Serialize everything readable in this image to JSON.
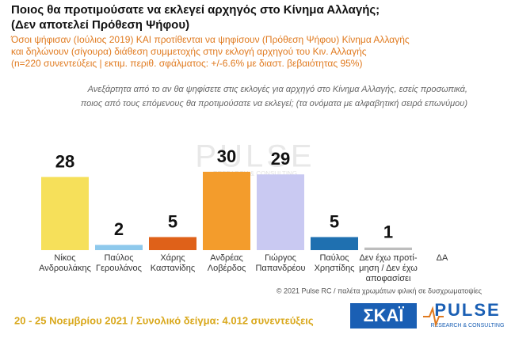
{
  "chart_data": {
    "type": "bar",
    "title": [
      "Ποιος θα προτιμούσατε να εκλεγεί αρχηγός στο Κίνημα Αλλαγής;",
      "(Δεν αποτελεί Πρόθεση Ψήφου)"
    ],
    "subtitle": [
      "Όσοι ψήφισαν (Ιούλιος 2019)  ΚΑΙ  προτίθενται να ψηφίσουν (Πρόθεση Ψήφου) Κίνημα Αλλαγής",
      "και δηλώνουν (σίγουρα) διάθεση συμμετοχής στην εκλογή αρχηγού του Κιν. Αλλαγής",
      "(n=220 συνεντεύξεις | εκτιμ. περιθ. σφάλματος: +/-6.6% με διαστ. βεβαιότητας 95%)"
    ],
    "question": [
      "Ανεξάρτητα από το αν θα ψηφίσετε στις εκλογές για αρχηγό στο Κίνημα Αλλαγής, εσείς προσωπικά,",
      "ποιος από τους επόμενους θα προτιμούσατε να εκλεγεί; (τα ονόματα με αλφαβητική σειρά επωνύμου)"
    ],
    "categories": [
      [
        "Νίκος",
        "Ανδρουλάκης"
      ],
      [
        "Παύλος",
        "Γερουλάνος"
      ],
      [
        "Χάρης",
        "Καστανίδης"
      ],
      [
        "Ανδρέας",
        "Λοβέρδος"
      ],
      [
        "Γιώργος",
        "Παπανδρέου"
      ],
      [
        "Παύλος",
        "Χρηστίδης"
      ],
      [
        "Δεν έχω προτί-",
        "μηση / Δεν έχω",
        "αποφασίσει"
      ],
      [
        "ΔΑ"
      ]
    ],
    "values": [
      28,
      2,
      5,
      30,
      29,
      5,
      1,
      null
    ],
    "colors": [
      "#f6e05a",
      "#8ec9ec",
      "#df6119",
      "#f39c2c",
      "#c9c9f2",
      "#1f70b0",
      "#bdbdbd",
      "#bdbdbd"
    ],
    "watermark": [
      "PULSE",
      "RESEARCH & CONSULTING"
    ],
    "note": "© 2021 Pulse RC  /  παλέτα χρωμάτων φιλική σε δυσχρωματοψίες",
    "footer": "20 - 25  Νοεμβρίου 2021  /  Συνολικό δείγμα:  4.012  συνεντεύξεις",
    "logos": [
      "ΣΚΑΪ",
      "PULSE",
      "RESEARCH & CONSULTING"
    ]
  }
}
